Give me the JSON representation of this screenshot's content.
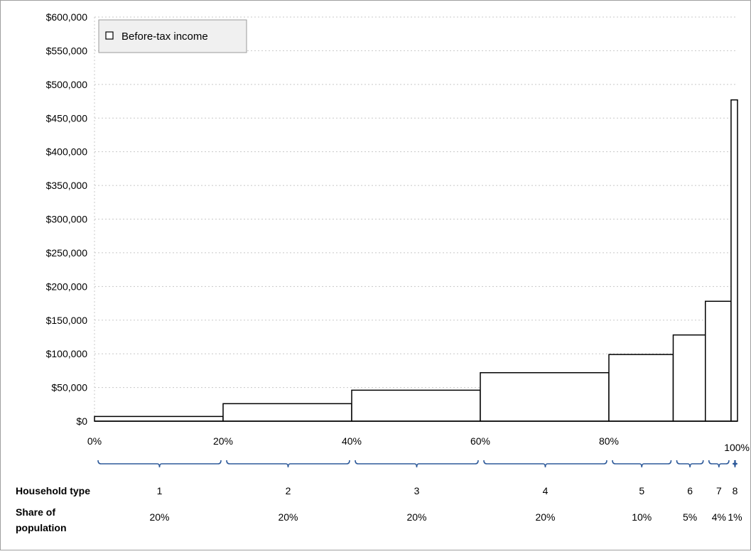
{
  "chart_data": {
    "type": "bar",
    "legend": {
      "label": "Before-tax income",
      "position": "top-left"
    },
    "grid": true,
    "ylim": [
      0,
      600000
    ],
    "y_tick_labels": [
      "$0",
      "$50,000",
      "$100,000",
      "$150,000",
      "$200,000",
      "$250,000",
      "$300,000",
      "$350,000",
      "$400,000",
      "$450,000",
      "$500,000",
      "$550,000",
      "$600,000"
    ],
    "x_tick_labels": [
      "0%",
      "20%",
      "40%",
      "60%",
      "80%",
      "100%"
    ],
    "series": [
      {
        "name": "Before-tax income",
        "bars": [
          {
            "x_start": 0,
            "x_end": 20,
            "value": 7000
          },
          {
            "x_start": 20,
            "x_end": 40,
            "value": 26000
          },
          {
            "x_start": 40,
            "x_end": 60,
            "value": 46000
          },
          {
            "x_start": 60,
            "x_end": 80,
            "value": 72000
          },
          {
            "x_start": 80,
            "x_end": 90,
            "value": 99000
          },
          {
            "x_start": 90,
            "x_end": 95,
            "value": 128000
          },
          {
            "x_start": 95,
            "x_end": 99,
            "value": 178000
          },
          {
            "x_start": 99,
            "x_end": 100,
            "value": 477000
          }
        ]
      }
    ],
    "household_type_label": "Household type",
    "share_label_line1": "Share of",
    "share_label_line2": "population",
    "groups": [
      {
        "type": "1",
        "share": "20%"
      },
      {
        "type": "2",
        "share": "20%"
      },
      {
        "type": "3",
        "share": "20%"
      },
      {
        "type": "4",
        "share": "20%"
      },
      {
        "type": "5",
        "share": "10%"
      },
      {
        "type": "6",
        "share": "5%"
      },
      {
        "type": "7",
        "share": "4%"
      },
      {
        "type": "8",
        "share": "1%"
      }
    ],
    "colors": {
      "bar_fill": "#ffffff",
      "bar_stroke": "#000000",
      "brace": "#2e5a9a",
      "grid": "#c8c8c8",
      "legend_bg": "#f0f0f0"
    }
  }
}
